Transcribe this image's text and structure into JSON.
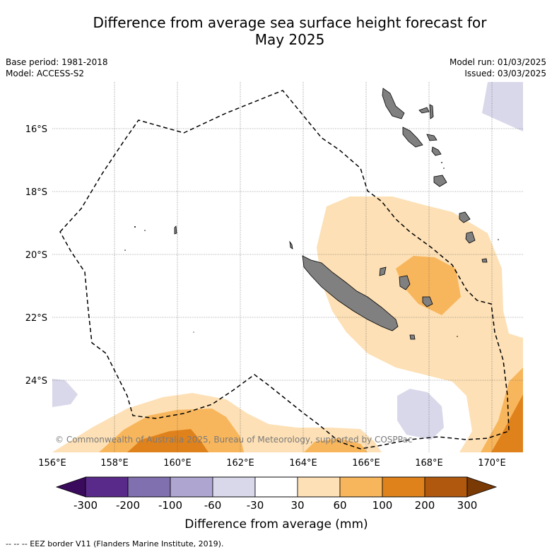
{
  "title_line1": "Difference from average sea surface height forecast for",
  "title_line2": "May 2025",
  "base_period": "Base period: 1981-2018",
  "model": "Model: ACCESS-S2",
  "model_run": "Model run: 01/03/2025",
  "issued": "Issued: 03/03/2025",
  "copyright": "© Commonwealth of Australia 2025, Bureau of Meteorology, supported by COSPPac",
  "lon_ticks": [
    "156°E",
    "158°E",
    "160°E",
    "162°E",
    "164°E",
    "166°E",
    "168°E",
    "170°E"
  ],
  "lat_ticks": [
    "16°S",
    "18°S",
    "20°S",
    "22°S",
    "24°S"
  ],
  "colorbar": {
    "label": "Difference from average (mm)",
    "tick_labels": [
      "-300",
      "-200",
      "-100",
      "-60",
      "-30",
      "30",
      "60",
      "100",
      "200",
      "300"
    ],
    "colors": [
      "#3a0b5c",
      "#5a2a8a",
      "#8070b0",
      "#aea6d0",
      "#d8d8ea",
      "#ffffff",
      "#fde0b5",
      "#f8b65c",
      "#e0821c",
      "#b0580e",
      "#7a3a06"
    ]
  },
  "footnote": "--  --  -- EEZ border V11 (Flanders Marine Institute, 2019)."
}
